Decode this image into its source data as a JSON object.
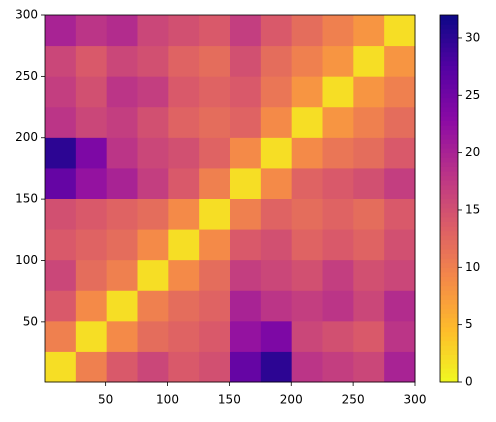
{
  "chart_data": {
    "type": "heatmap",
    "colormap": "plasma_r",
    "xlim": [
      1,
      300
    ],
    "ylim": [
      1,
      300
    ],
    "xticks": [
      50,
      100,
      150,
      200,
      250,
      300
    ],
    "yticks": [
      50,
      100,
      150,
      200,
      250,
      300
    ],
    "clim": [
      0,
      32
    ],
    "cticks": [
      0,
      5,
      10,
      15,
      20,
      25,
      30
    ],
    "z": [
      [
        2,
        10,
        14,
        16,
        14,
        15,
        26,
        30,
        18,
        17,
        16,
        20
      ],
      [
        10,
        2,
        9,
        12,
        13,
        14,
        22,
        24,
        16,
        15,
        14,
        18
      ],
      [
        14,
        9,
        2,
        10,
        12,
        13,
        20,
        18,
        17,
        18,
        16,
        19
      ],
      [
        16,
        12,
        10,
        2,
        9,
        12,
        17,
        16,
        15,
        17,
        15,
        16
      ],
      [
        14,
        13,
        12,
        9,
        2,
        9,
        14,
        15,
        13,
        14,
        13,
        15
      ],
      [
        15,
        14,
        13,
        12,
        9,
        2,
        10,
        13,
        12,
        13,
        12,
        14
      ],
      [
        26,
        22,
        20,
        17,
        14,
        10,
        2,
        9,
        13,
        14,
        15,
        17
      ],
      [
        30,
        24,
        18,
        16,
        15,
        13,
        9,
        2,
        9,
        11,
        12,
        14
      ],
      [
        18,
        16,
        17,
        15,
        13,
        12,
        13,
        9,
        2,
        8,
        10,
        12
      ],
      [
        17,
        15,
        18,
        17,
        14,
        13,
        14,
        11,
        8,
        2,
        8,
        10
      ],
      [
        16,
        14,
        16,
        15,
        13,
        12,
        15,
        12,
        10,
        8,
        2,
        8
      ],
      [
        20,
        18,
        19,
        16,
        15,
        14,
        17,
        14,
        12,
        10,
        8,
        2
      ]
    ]
  }
}
